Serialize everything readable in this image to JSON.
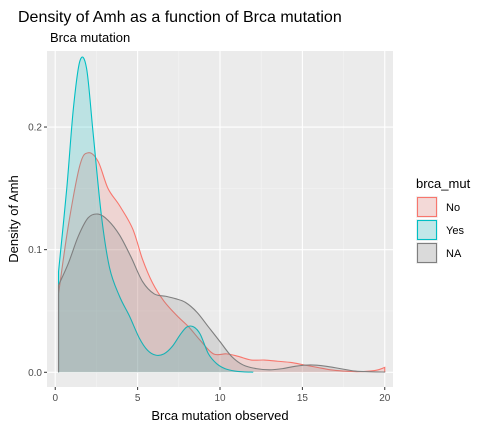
{
  "chart_data": {
    "type": "area",
    "title": "Density of Amh as a function of Brca mutation",
    "subtitle": "Brca mutation",
    "xlabel": "Brca mutation observed",
    "ylabel": "Density of Amh",
    "xlim": [
      -0.5,
      20.5
    ],
    "ylim": [
      -0.012,
      0.262
    ],
    "x_ticks": [
      0,
      5,
      10,
      15,
      20
    ],
    "x_tick_labels": [
      "0",
      "5",
      "10",
      "15",
      "20"
    ],
    "y_ticks": [
      0.0,
      0.1,
      0.2
    ],
    "y_tick_labels": [
      "0.0",
      "0.1",
      "0.2"
    ],
    "grid": true,
    "legend": {
      "title": "brca_mut",
      "position": "right"
    },
    "series": [
      {
        "name": "No",
        "color": "#f8766d",
        "fill": "#f8766d",
        "x": [
          0.2,
          0.8,
          1.5,
          2.0,
          2.6,
          3.2,
          3.9,
          4.7,
          5.3,
          5.9,
          6.6,
          7.4,
          8.1,
          8.8,
          9.6,
          10.4,
          11.1,
          11.9,
          12.7,
          13.5,
          14.3,
          15.1,
          15.9,
          16.7,
          17.5,
          18.3,
          19.1,
          19.6,
          20.0
        ],
        "y": [
          0.064,
          0.12,
          0.169,
          0.179,
          0.172,
          0.15,
          0.136,
          0.117,
          0.092,
          0.073,
          0.058,
          0.046,
          0.037,
          0.026,
          0.015,
          0.015,
          0.013,
          0.01,
          0.01,
          0.009,
          0.008,
          0.006,
          0.004,
          0.002,
          0.001,
          0.0005,
          0.001,
          0.002,
          0.004
        ]
      },
      {
        "name": "Yes",
        "color": "#00bfc4",
        "fill": "#00bfc4",
        "x": [
          0.2,
          0.7,
          1.1,
          1.5,
          1.9,
          2.3,
          2.8,
          3.3,
          3.9,
          4.5,
          5.1,
          5.6,
          6.1,
          6.6,
          7.1,
          7.6,
          8.0,
          8.4,
          8.8,
          9.3,
          9.8,
          10.3,
          10.9,
          11.4,
          12.0
        ],
        "y": [
          0.082,
          0.15,
          0.215,
          0.254,
          0.248,
          0.195,
          0.128,
          0.085,
          0.062,
          0.046,
          0.028,
          0.018,
          0.014,
          0.015,
          0.021,
          0.031,
          0.037,
          0.037,
          0.031,
          0.015,
          0.007,
          0.003,
          0.001,
          0.0004,
          0.0001
        ]
      },
      {
        "name": "NA",
        "color": "#7f7f7f",
        "fill": "#7f7f7f",
        "x": [
          0.2,
          0.8,
          1.4,
          2.0,
          2.6,
          3.2,
          3.9,
          4.6,
          5.3,
          6.0,
          6.7,
          7.3,
          7.9,
          8.6,
          9.3,
          10.0,
          10.7,
          11.4,
          12.2,
          13.0,
          13.8,
          14.6,
          15.5,
          16.4,
          17.3,
          18.2,
          19.2,
          20.0
        ],
        "y": [
          0.071,
          0.089,
          0.111,
          0.126,
          0.129,
          0.124,
          0.112,
          0.094,
          0.074,
          0.064,
          0.062,
          0.06,
          0.057,
          0.049,
          0.037,
          0.025,
          0.013,
          0.006,
          0.003,
          0.002,
          0.003,
          0.005,
          0.006,
          0.005,
          0.003,
          0.001,
          0.0004,
          0.0002
        ]
      }
    ]
  }
}
